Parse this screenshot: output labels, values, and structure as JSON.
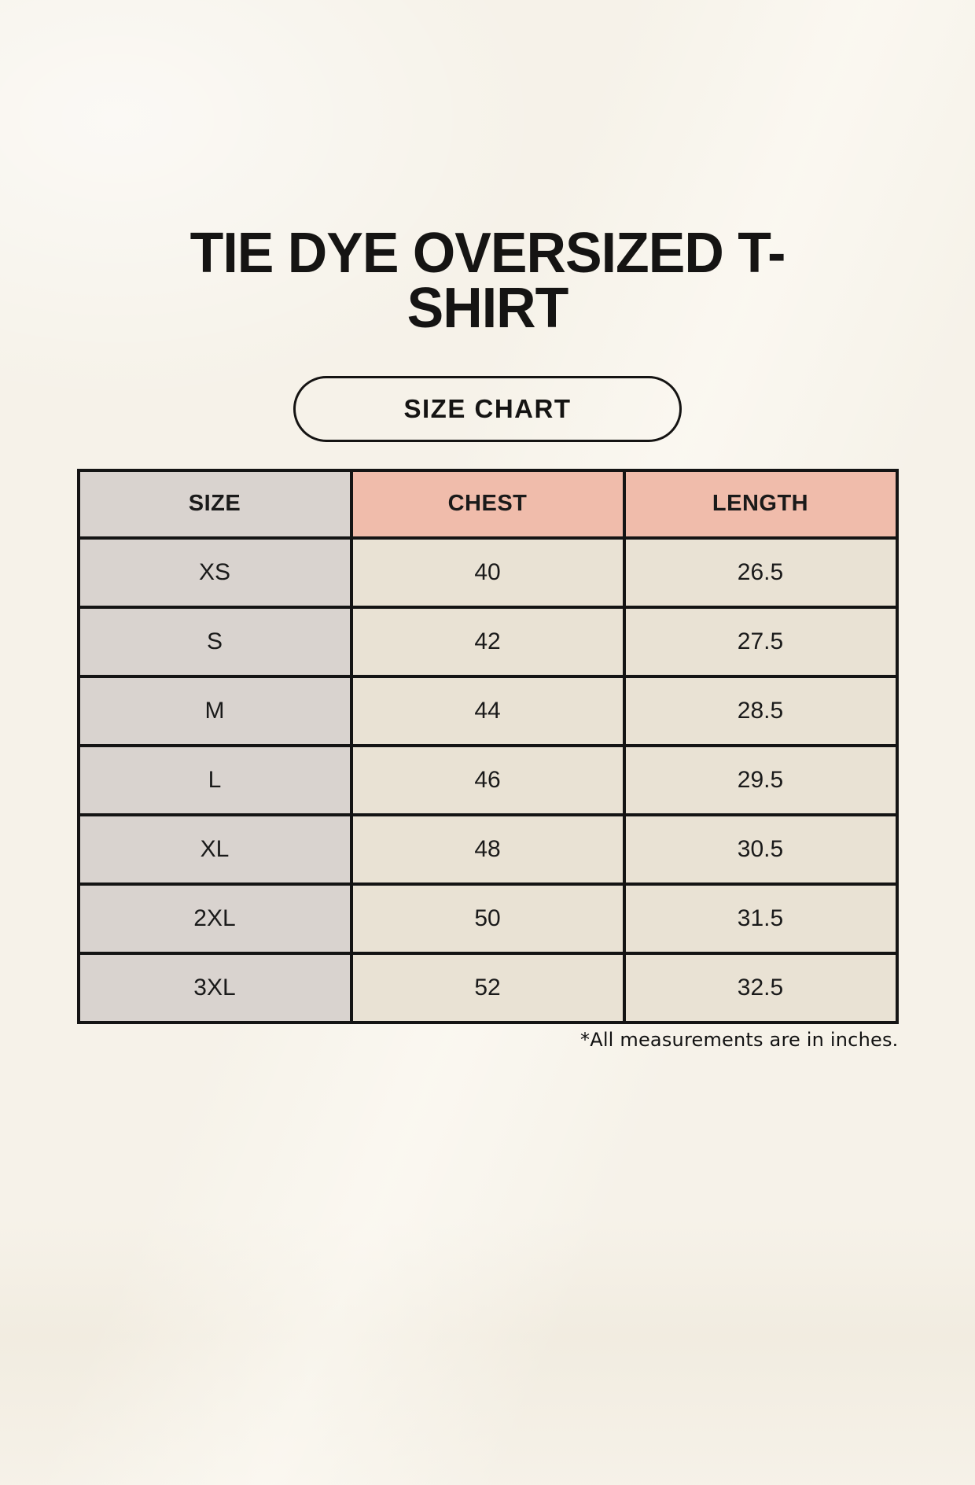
{
  "page": {
    "title": "TIE DYE OVERSIZED T-SHIRT",
    "badge_label": "SIZE CHART",
    "footnote": "*All measurements are in inches."
  },
  "colors": {
    "background": "#f6f2e9",
    "header_pink": "#f0bcab",
    "size_column_gray": "#d9d3cf",
    "cell_cream": "#e9e2d4",
    "border_black": "#141414"
  },
  "chart_data": {
    "type": "table",
    "title": "TIE DYE OVERSIZED T-SHIRT",
    "subtitle": "SIZE CHART",
    "columns": [
      "SIZE",
      "CHEST",
      "LENGTH"
    ],
    "units": "inches",
    "rows": [
      [
        "XS",
        "40",
        "26.5"
      ],
      [
        "S",
        "42",
        "27.5"
      ],
      [
        "M",
        "44",
        "28.5"
      ],
      [
        "L",
        "46",
        "29.5"
      ],
      [
        "XL",
        "48",
        "30.5"
      ],
      [
        "2XL",
        "50",
        "31.5"
      ],
      [
        "3XL",
        "52",
        "32.5"
      ]
    ],
    "note": "*All measurements are in inches."
  }
}
